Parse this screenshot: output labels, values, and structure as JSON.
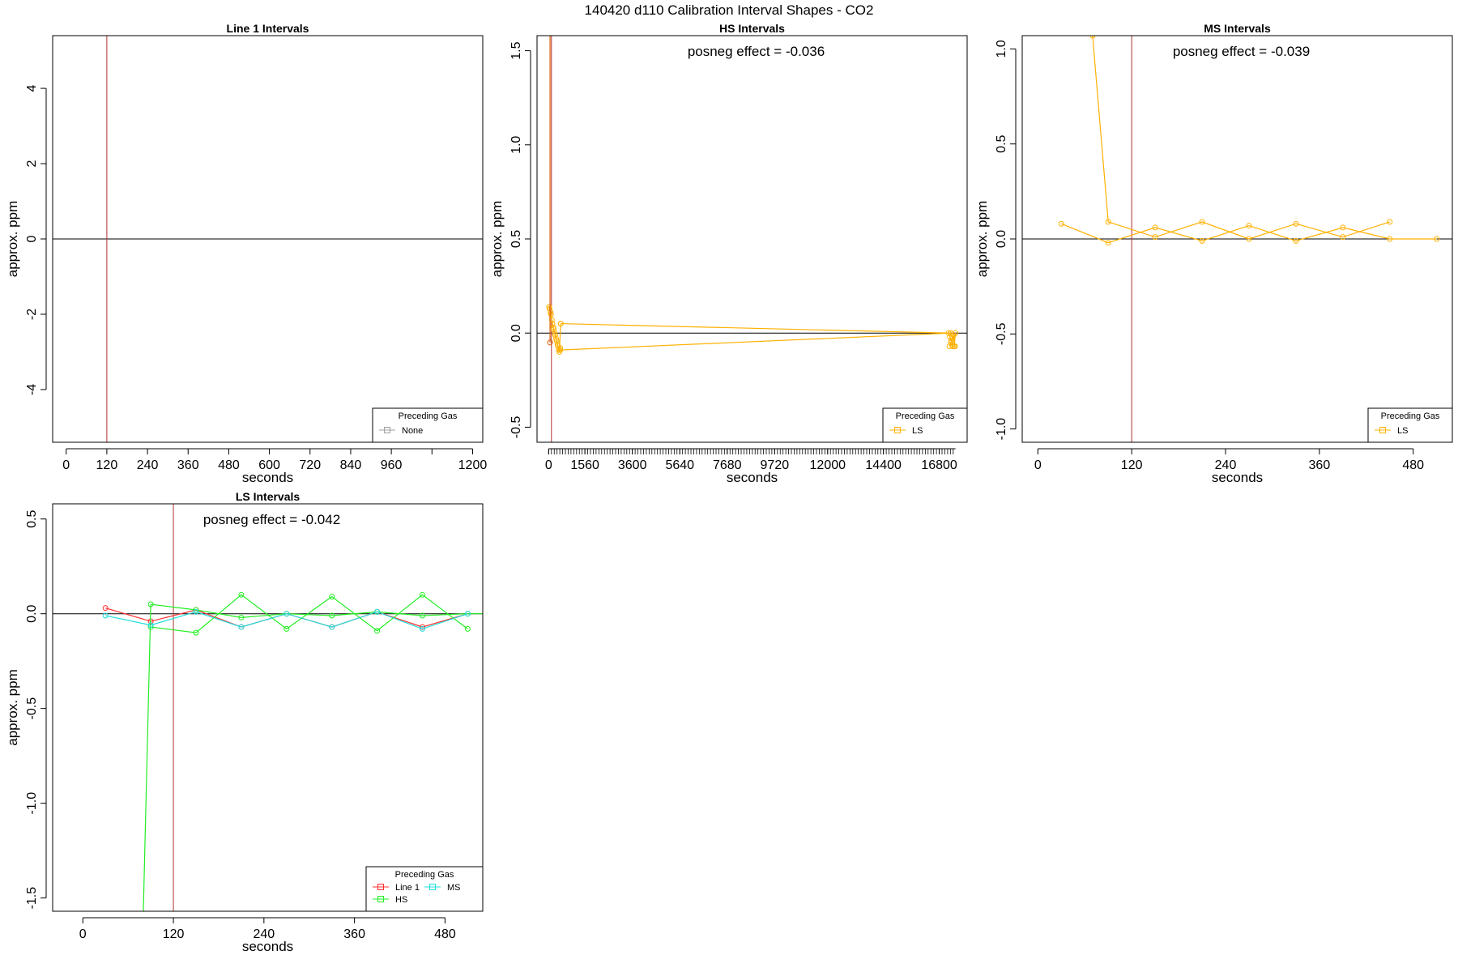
{
  "page": {
    "title": "140420  d110   Calibration Interval Shapes - CO2"
  },
  "chart_data": [
    {
      "type": "line",
      "title": "Line 1 Intervals",
      "xlabel": "seconds",
      "ylabel": "approx. ppm",
      "xlim": [
        -40,
        1230
      ],
      "ylim": [
        -5.4,
        5.4
      ],
      "xticks": [
        0,
        120,
        240,
        360,
        480,
        600,
        720,
        840,
        960,
        1080,
        1200
      ],
      "xtick_labels": [
        "0",
        "120",
        "240",
        "360",
        "480",
        "600",
        "720",
        "840",
        "960",
        "",
        "1200"
      ],
      "yticks": [
        -4,
        -2,
        0,
        2,
        4
      ],
      "ytick_labels": [
        "-4",
        "-2",
        "0",
        "2",
        "4"
      ],
      "hline": 0,
      "vline": 120,
      "annotation": "",
      "legend": {
        "title": "Preceding Gas",
        "position": "bottom-right",
        "entries": [
          {
            "name": "None",
            "color": "#9e9e9e"
          }
        ]
      },
      "series": []
    },
    {
      "type": "line",
      "title": "HS Intervals",
      "xlabel": "seconds",
      "ylabel": "approx. ppm",
      "xlim": [
        -500,
        18000
      ],
      "ylim": [
        -0.58,
        1.58
      ],
      "xticks": [
        0,
        1560,
        3600,
        5640,
        7680,
        9720,
        12000,
        14400,
        16800
      ],
      "xtick_labels": [
        "0",
        "1560",
        "3600",
        "5640",
        "7680",
        "9720",
        "12000",
        "14400",
        "16800"
      ],
      "minor_tick_step": 120,
      "minor_tick_range": [
        0,
        17500
      ],
      "yticks": [
        -0.5,
        0.0,
        0.5,
        1.0,
        1.5
      ],
      "ytick_labels": [
        "-0.5",
        "0.0",
        "0.5",
        "1.0",
        "1.5"
      ],
      "hline": 0,
      "vline": 120,
      "annotation": "posneg effect = -0.036",
      "legend": {
        "title": "Preceding Gas",
        "position": "bottom-right",
        "entries": [
          {
            "name": "LS",
            "color": "#ffb000"
          }
        ]
      },
      "series": [
        {
          "name": "",
          "color": "#ffb000",
          "x": [
            20,
            80,
            140,
            200,
            260,
            320,
            380,
            440,
            500
          ],
          "y": [
            0.14,
            0.11,
            0.07,
            0.03,
            0.0,
            -0.03,
            -0.06,
            -0.09,
            -0.08
          ]
        },
        {
          "name": "",
          "color": "#ffb000",
          "x": [
            40,
            100,
            160,
            220,
            280,
            340,
            400,
            460,
            520
          ],
          "y": [
            0.13,
            0.1,
            0.05,
            0.02,
            -0.01,
            -0.04,
            -0.07,
            -0.1,
            0.05
          ]
        },
        {
          "name": "",
          "color": "#ffb000",
          "x": [
            520,
            17300
          ],
          "y": [
            0.05,
            0.0
          ]
        },
        {
          "name": "",
          "color": "#ffb000",
          "x": [
            500,
            17300
          ],
          "y": [
            -0.09,
            0.0
          ]
        },
        {
          "name": "",
          "color": "#ffb000",
          "x": [
            17200,
            17260,
            17320,
            17380,
            17440,
            17500,
            17240,
            17300,
            17360,
            17420,
            17480
          ],
          "y": [
            0.0,
            -0.02,
            -0.04,
            -0.07,
            -0.07,
            0.0,
            -0.07,
            -0.05,
            -0.03,
            -0.01,
            -0.07
          ]
        },
        {
          "name": "",
          "color": "#d85a00",
          "x": [
            60,
            60
          ],
          "y": [
            -0.05,
            1.6
          ]
        }
      ]
    },
    {
      "type": "line",
      "title": "MS Intervals",
      "xlabel": "seconds",
      "ylabel": "approx. ppm",
      "xlim": [
        -20,
        530
      ],
      "ylim": [
        -1.07,
        1.07
      ],
      "xticks": [
        0,
        120,
        240,
        360,
        480
      ],
      "xtick_labels": [
        "0",
        "120",
        "240",
        "360",
        "480"
      ],
      "yticks": [
        -1.0,
        -0.5,
        0.0,
        0.5,
        1.0
      ],
      "ytick_labels": [
        "-1.0",
        "-0.5",
        "0.0",
        "0.5",
        "1.0"
      ],
      "hline": 0,
      "vline": 120,
      "annotation": "posneg effect = -0.039",
      "legend": {
        "title": "Preceding Gas",
        "position": "bottom-right",
        "entries": [
          {
            "name": "LS",
            "color": "#ffb000"
          }
        ]
      },
      "series": [
        {
          "name": "",
          "color": "#ffb000",
          "x": [
            30,
            90,
            150,
            210,
            270,
            330,
            390,
            450,
            510
          ],
          "y": [
            0.08,
            -0.02,
            0.06,
            -0.01,
            0.07,
            -0.01,
            0.06,
            0.0,
            0.0
          ]
        },
        {
          "name": "",
          "color": "#ffb000",
          "x": [
            70,
            90,
            150,
            210,
            270,
            330,
            390,
            450
          ],
          "y": [
            1.07,
            0.09,
            0.01,
            0.09,
            0.0,
            0.08,
            0.01,
            0.09
          ]
        }
      ]
    },
    {
      "type": "line",
      "title": "LS Intervals",
      "xlabel": "seconds",
      "ylabel": "approx. ppm",
      "xlim": [
        -40,
        530
      ],
      "ylim": [
        -1.57,
        0.58
      ],
      "xticks": [
        0,
        120,
        240,
        360,
        480
      ],
      "xtick_labels": [
        "0",
        "120",
        "240",
        "360",
        "480"
      ],
      "yticks": [
        -1.5,
        -1.0,
        -0.5,
        0.0,
        0.5
      ],
      "ytick_labels": [
        "-1.5",
        "-1.0",
        "-0.5",
        "0.0",
        "0.5"
      ],
      "hline": 0,
      "vline": 120,
      "annotation": "posneg effect = -0.042",
      "legend": {
        "title": "Preceding Gas",
        "position": "bottom-right",
        "entries": [
          {
            "name": "Line 1",
            "color": "#ff3030"
          },
          {
            "name": "HS",
            "color": "#22ee22"
          },
          {
            "name": "MS",
            "color": "#22dddd"
          }
        ]
      },
      "series": [
        {
          "name": "Line 1",
          "color": "#ff3030",
          "x": [
            30,
            90,
            150,
            210,
            270,
            330,
            390,
            450,
            510
          ],
          "y": [
            0.03,
            -0.04,
            0.02,
            -0.07,
            0.0,
            -0.07,
            0.01,
            -0.07,
            0.0
          ]
        },
        {
          "name": "HS",
          "color": "#22ee22",
          "x": [
            80,
            90,
            150,
            210,
            270,
            330,
            390,
            450,
            510,
            570
          ],
          "y": [
            -1.6,
            0.05,
            0.02,
            -0.02,
            0.0,
            -0.01,
            0.01,
            -0.01,
            0.0,
            0.0
          ]
        },
        {
          "name": "HS",
          "color": "#22ee22",
          "x": [
            90,
            150,
            210,
            270,
            330,
            390,
            450,
            510
          ],
          "y": [
            -0.07,
            -0.1,
            0.1,
            -0.08,
            0.09,
            -0.09,
            0.1,
            -0.08
          ]
        },
        {
          "name": "MS",
          "color": "#22dddd",
          "x": [
            30,
            90,
            150,
            210,
            270,
            330,
            390,
            450,
            510
          ],
          "y": [
            -0.01,
            -0.06,
            0.01,
            -0.07,
            0.0,
            -0.07,
            0.01,
            -0.08,
            0.0
          ]
        }
      ]
    }
  ]
}
